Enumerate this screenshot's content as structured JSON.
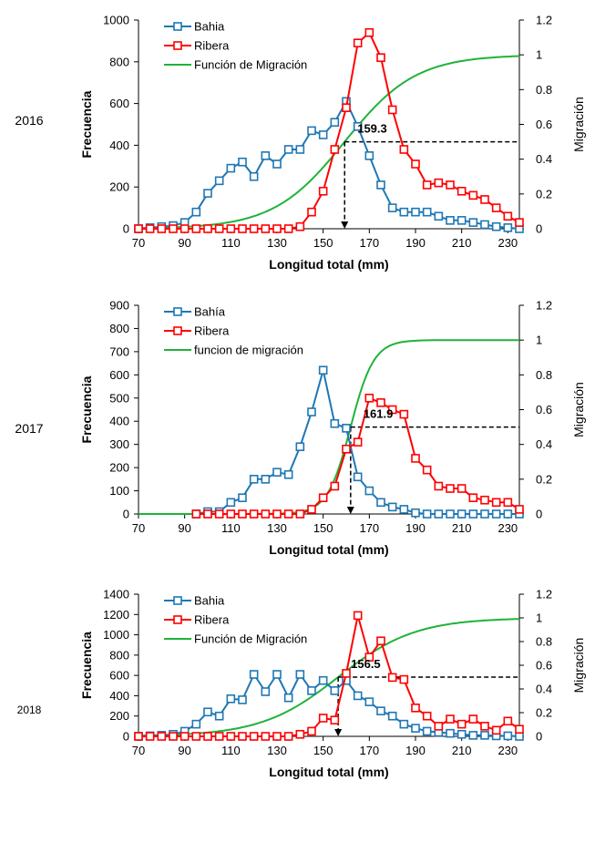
{
  "colors": {
    "bahia": "#1f77b4",
    "ribera": "#ff0000",
    "migracion": "#1fb33a",
    "axis": "#000000"
  },
  "chart_data": [
    {
      "type": "line",
      "year_label": "2016",
      "xlabel": "Longitud total (mm)",
      "ylabel": "Frecuencia",
      "y2label": "Migración",
      "xlim": [
        70,
        235
      ],
      "xticks": [
        70,
        90,
        110,
        130,
        150,
        170,
        190,
        210,
        230
      ],
      "ylim": [
        0,
        1000
      ],
      "yticks": [
        0,
        200,
        400,
        600,
        800,
        1000
      ],
      "y2lim": [
        0,
        1.2
      ],
      "y2ticks": [
        "0",
        "0.2",
        "0.4",
        "0.6",
        "0.8",
        "1",
        "1.2"
      ],
      "legend": [
        "Bahia",
        "Ribera",
        "Función de Migración"
      ],
      "x": [
        70,
        75,
        80,
        85,
        90,
        95,
        100,
        105,
        110,
        115,
        120,
        125,
        130,
        135,
        140,
        145,
        150,
        155,
        160,
        165,
        170,
        175,
        180,
        185,
        190,
        195,
        200,
        205,
        210,
        215,
        220,
        225,
        230,
        235
      ],
      "series": [
        {
          "name": "Bahia",
          "values": [
            0,
            5,
            10,
            15,
            30,
            80,
            170,
            230,
            290,
            320,
            250,
            350,
            310,
            380,
            380,
            470,
            450,
            510,
            610,
            490,
            350,
            210,
            100,
            80,
            80,
            80,
            60,
            40,
            40,
            30,
            20,
            10,
            5,
            0
          ]
        },
        {
          "name": "Ribera",
          "values": [
            0,
            0,
            0,
            0,
            0,
            0,
            0,
            0,
            0,
            0,
            0,
            0,
            0,
            0,
            10,
            80,
            180,
            380,
            580,
            890,
            940,
            820,
            570,
            380,
            310,
            210,
            220,
            210,
            180,
            160,
            140,
            100,
            60,
            30
          ]
        }
      ],
      "migration_curve": {
        "mid": 159.3,
        "k": 0.065
      },
      "annotation": {
        "x": 159.3,
        "y2": 0.5,
        "label": "159.3"
      }
    },
    {
      "type": "line",
      "year_label": "2017",
      "xlabel": "Longitud total (mm)",
      "ylabel": "Frecuencia",
      "y2label": "Migración",
      "xlim": [
        70,
        235
      ],
      "xticks": [
        70,
        90,
        110,
        130,
        150,
        170,
        190,
        210,
        230
      ],
      "ylim": [
        0,
        900
      ],
      "yticks": [
        0,
        100,
        200,
        300,
        400,
        500,
        600,
        700,
        800,
        900
      ],
      "y2lim": [
        0,
        1.2
      ],
      "y2ticks": [
        "0",
        "0.2",
        "0.4",
        "0.6",
        "0.8",
        "1",
        "1.2"
      ],
      "legend": [
        "Bahía",
        "Ribera",
        "funcion de migración"
      ],
      "x": [
        95,
        100,
        105,
        110,
        115,
        120,
        125,
        130,
        135,
        140,
        145,
        150,
        155,
        160,
        165,
        170,
        175,
        180,
        185,
        190,
        195,
        200,
        205,
        210,
        215,
        220,
        225,
        230,
        235
      ],
      "series": [
        {
          "name": "Bahía",
          "values": [
            0,
            10,
            10,
            50,
            70,
            150,
            150,
            180,
            170,
            290,
            440,
            620,
            390,
            370,
            160,
            100,
            50,
            30,
            20,
            5,
            0,
            0,
            0,
            0,
            0,
            0,
            0,
            0,
            0
          ]
        },
        {
          "name": "Ribera",
          "values": [
            0,
            0,
            0,
            0,
            0,
            0,
            0,
            0,
            0,
            0,
            20,
            70,
            120,
            280,
            310,
            500,
            480,
            450,
            430,
            240,
            190,
            120,
            110,
            110,
            70,
            60,
            50,
            50,
            20
          ]
        }
      ],
      "migration_curve": {
        "mid": 161.9,
        "k": 0.2
      },
      "annotation": {
        "x": 161.9,
        "y2": 0.5,
        "label": "161.9"
      }
    },
    {
      "type": "line",
      "year_label": "2018",
      "xlabel": "Longitud total (mm)",
      "ylabel": "Frecuencia",
      "y2label": "Migración",
      "xlim": [
        70,
        235
      ],
      "xticks": [
        70,
        90,
        110,
        130,
        150,
        170,
        190,
        210,
        230
      ],
      "ylim": [
        0,
        1400
      ],
      "yticks": [
        0,
        200,
        400,
        600,
        800,
        1000,
        1200,
        1400
      ],
      "y2lim": [
        0,
        1.2
      ],
      "y2ticks": [
        "0",
        "0.2",
        "0.4",
        "0.6",
        "0.8",
        "1",
        "1.2"
      ],
      "legend": [
        "Bahia",
        "Ribera",
        "Función de Migración"
      ],
      "x": [
        70,
        75,
        80,
        85,
        90,
        95,
        100,
        105,
        110,
        115,
        120,
        125,
        130,
        135,
        140,
        145,
        150,
        155,
        160,
        165,
        170,
        175,
        180,
        185,
        190,
        195,
        200,
        205,
        210,
        215,
        220,
        225,
        230,
        235
      ],
      "series": [
        {
          "name": "Bahia",
          "values": [
            0,
            5,
            10,
            20,
            50,
            120,
            240,
            200,
            370,
            360,
            610,
            440,
            610,
            380,
            610,
            450,
            550,
            450,
            550,
            400,
            340,
            250,
            200,
            120,
            80,
            50,
            40,
            30,
            20,
            10,
            10,
            5,
            5,
            0
          ]
        },
        {
          "name": "Ribera",
          "values": [
            0,
            0,
            0,
            0,
            0,
            0,
            0,
            0,
            0,
            0,
            0,
            0,
            0,
            0,
            20,
            50,
            180,
            160,
            620,
            1190,
            780,
            940,
            580,
            560,
            280,
            200,
            100,
            170,
            120,
            170,
            100,
            60,
            150,
            70
          ]
        }
      ],
      "migration_curve": {
        "mid": 156.5,
        "k": 0.06
      },
      "annotation": {
        "x": 156.5,
        "y2": 0.5,
        "label": "156.5"
      }
    }
  ]
}
